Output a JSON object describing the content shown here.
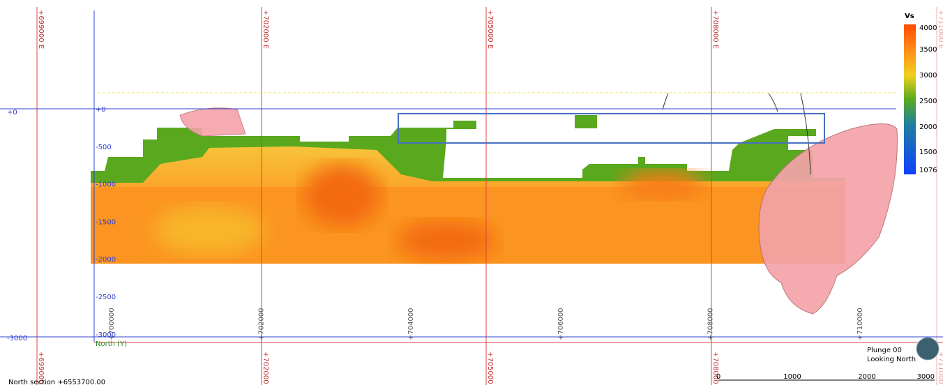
{
  "grid_labels": [
    "+699000 E",
    "+702000 E",
    "+705000 E",
    "+708000 E",
    "+711000 E"
  ],
  "section_labels": [
    "+0",
    "-3000"
  ],
  "elevation_labels": [
    "+0",
    "-500",
    "-1000",
    "-1500",
    "-2000",
    "-2500",
    "-3000"
  ],
  "easting_labels": [
    "+700000",
    "+702000",
    "+704000",
    "+706000",
    "+708000",
    "+710000"
  ],
  "north_axis_label": "North (Y)",
  "legend": {
    "title": "Vs",
    "values": [
      4000,
      3500,
      3000,
      2500,
      2000,
      1500,
      1076
    ]
  },
  "view": {
    "plunge": "Plunge 00",
    "direction": "Looking North"
  },
  "section_label": "North section +6553700.00",
  "scale_bar": [
    0,
    1000,
    2000,
    3000
  ]
}
